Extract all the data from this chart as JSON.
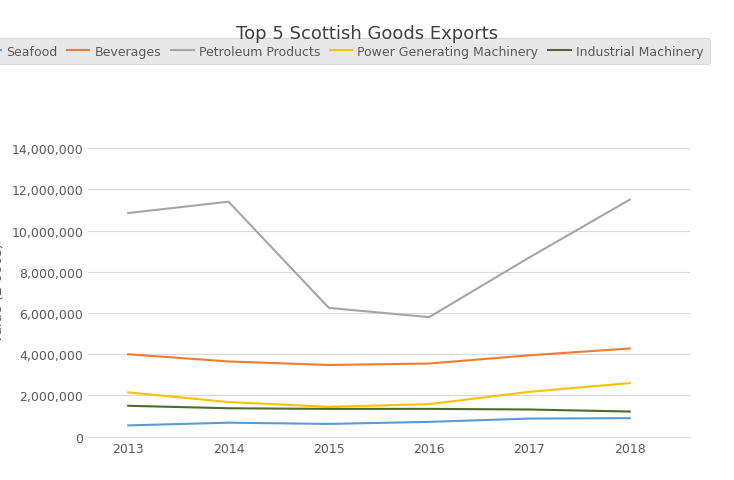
{
  "title": "Top 5 Scottish Goods Exports",
  "years": [
    2013,
    2014,
    2015,
    2016,
    2017,
    2018
  ],
  "series": [
    {
      "label": "Seafood",
      "color": "#5b9bd5",
      "values": [
        550000,
        680000,
        620000,
        720000,
        880000,
        900000
      ]
    },
    {
      "label": "Beverages",
      "color": "#ed7d31",
      "values": [
        4000000,
        3650000,
        3480000,
        3550000,
        3950000,
        4280000
      ]
    },
    {
      "label": "Petroleum Products",
      "color": "#a5a5a5",
      "values": [
        10850000,
        11400000,
        6250000,
        5800000,
        8700000,
        11500000
      ]
    },
    {
      "label": "Power Generating Machinery",
      "color": "#ffc000",
      "values": [
        2150000,
        1680000,
        1450000,
        1580000,
        2180000,
        2600000
      ]
    },
    {
      "label": "Industrial Machinery",
      "color": "#4e6b2e",
      "values": [
        1500000,
        1380000,
        1350000,
        1350000,
        1320000,
        1220000
      ]
    }
  ],
  "ylim": [
    0,
    14000000
  ],
  "yticks": [
    0,
    2000000,
    4000000,
    6000000,
    8000000,
    10000000,
    12000000,
    14000000
  ],
  "background_color": "#ffffff",
  "legend_background": "#e8e8e8",
  "title_fontsize": 13,
  "axis_label_fontsize": 10,
  "tick_fontsize": 9,
  "legend_fontsize": 9
}
